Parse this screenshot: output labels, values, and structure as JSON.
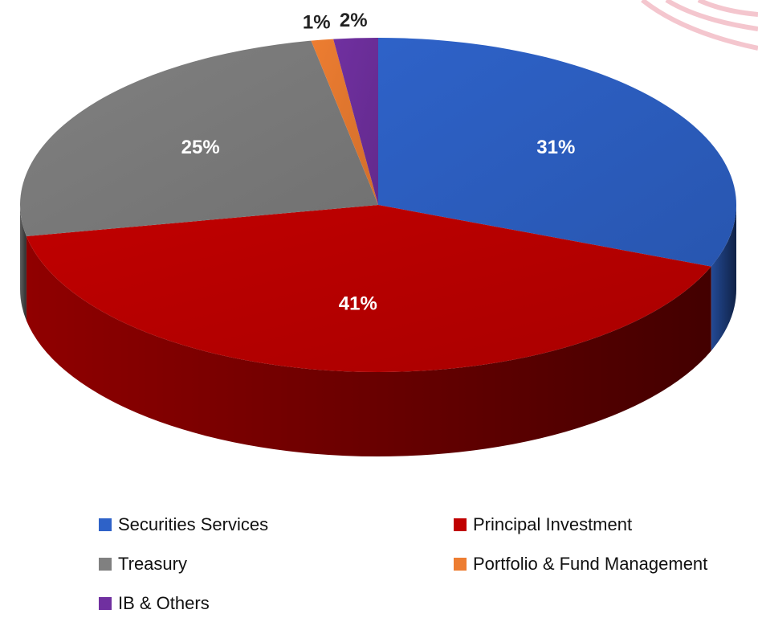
{
  "chart_data": {
    "type": "pie",
    "categories": [
      "Securities Services",
      "Principal Investment",
      "Treasury",
      "Portfolio & Fund Management",
      "IB & Others"
    ],
    "values": [
      31,
      41,
      25,
      1,
      2
    ],
    "value_labels": [
      "31%",
      "41%",
      "25%",
      "1%",
      "2%"
    ],
    "colors": [
      "#2e62c8",
      "#c00000",
      "#808080",
      "#ed7d31",
      "#7030a0"
    ]
  }
}
